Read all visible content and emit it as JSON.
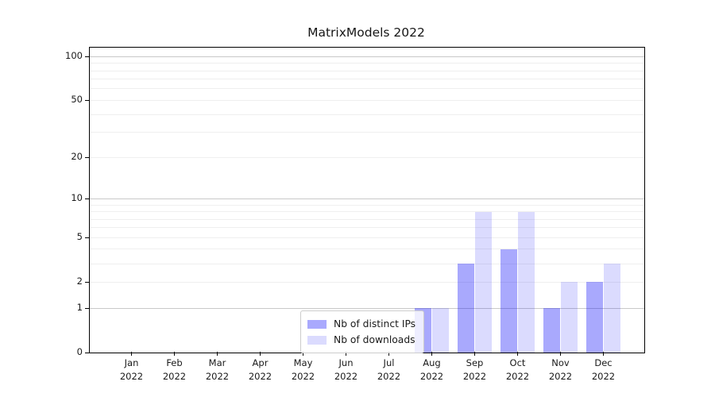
{
  "title": "MatrixModels 2022",
  "chart_data": {
    "type": "bar",
    "title": "MatrixModels 2022",
    "categories": [
      "Jan",
      "Feb",
      "Mar",
      "Apr",
      "May",
      "Jun",
      "Jul",
      "Aug",
      "Sep",
      "Oct",
      "Nov",
      "Dec"
    ],
    "x_year": "2022",
    "series": [
      {
        "name": "Nb of distinct IPs",
        "color": "rgba(10,10,250,0.35)",
        "values": [
          0,
          0,
          0,
          0,
          0,
          0,
          0,
          1,
          3,
          4,
          1,
          2
        ]
      },
      {
        "name": "Nb of downloads",
        "color": "rgba(10,10,250,0.145)",
        "values": [
          0,
          0,
          0,
          0,
          0,
          0,
          0,
          1,
          8,
          8,
          2,
          3
        ]
      }
    ],
    "y_ticks": [
      0,
      1,
      2,
      5,
      10,
      20,
      50,
      100
    ],
    "y_major_gridlines": [
      1,
      10,
      100
    ],
    "y_minor_gridlines": [
      2,
      3,
      4,
      5,
      6,
      7,
      8,
      9,
      20,
      30,
      40,
      50,
      60,
      70,
      80,
      90
    ],
    "y_axis_scale": "log10(1+v)",
    "ylim": [
      0,
      113
    ],
    "xlabel": "",
    "ylabel": "",
    "grid": true,
    "legend_position": "lower center"
  },
  "colors": {
    "grid_major": "#c9c9c9",
    "grid_minor": "#efefef",
    "spine": "#000000",
    "text": "#1a1a1a",
    "legend_border": "#cccccc"
  }
}
